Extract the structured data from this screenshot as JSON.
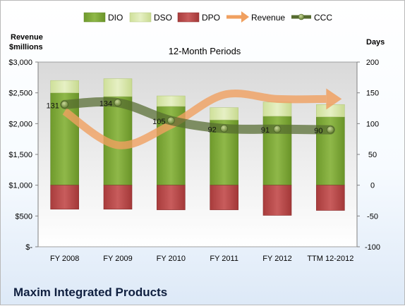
{
  "chart_data": {
    "type": "bar",
    "title": "12-Month Periods",
    "company": "Maxim Integrated Products",
    "left_axis_label": [
      "Revenue",
      "$millions"
    ],
    "right_axis_label": "Days",
    "categories": [
      "FY 2008",
      "FY 2009",
      "FY 2010",
      "FY 2011",
      "FY 2012",
      "TTM 12-2012"
    ],
    "left_ticks": [
      "$-",
      "$500",
      "$1,000",
      "$1,500",
      "$2,000",
      "$2,500",
      "$3,000"
    ],
    "left_ylim": [
      0,
      3000
    ],
    "right_ticks": [
      "-100",
      "-50",
      "0",
      "50",
      "100",
      "150",
      "200"
    ],
    "right_ylim": [
      -100,
      200
    ],
    "series": [
      {
        "name": "DIO",
        "axis": "right",
        "values": [
          150,
          144,
          128,
          106,
          112,
          111
        ],
        "color": "#7aa234"
      },
      {
        "name": "DSO",
        "axis": "right",
        "values": [
          20,
          29,
          17,
          20,
          23,
          20
        ],
        "color": "#d6e5a6"
      },
      {
        "name": "DPO",
        "axis": "right",
        "values": [
          -39,
          -39,
          -40,
          -40,
          -49,
          -41
        ],
        "color": "#b84a4a"
      },
      {
        "name": "Revenue",
        "axis": "left",
        "values": [
          2200,
          1650,
          1980,
          2470,
          2400,
          2400
        ],
        "color": "#f0a060"
      },
      {
        "name": "CCC",
        "axis": "right",
        "values": [
          131,
          134,
          105,
          92,
          91,
          90
        ],
        "color": "#556b2f"
      }
    ],
    "data_labels": [
      "131",
      "134",
      "105",
      "92",
      "91",
      "90"
    ],
    "legend_position": "top",
    "grid": false
  }
}
